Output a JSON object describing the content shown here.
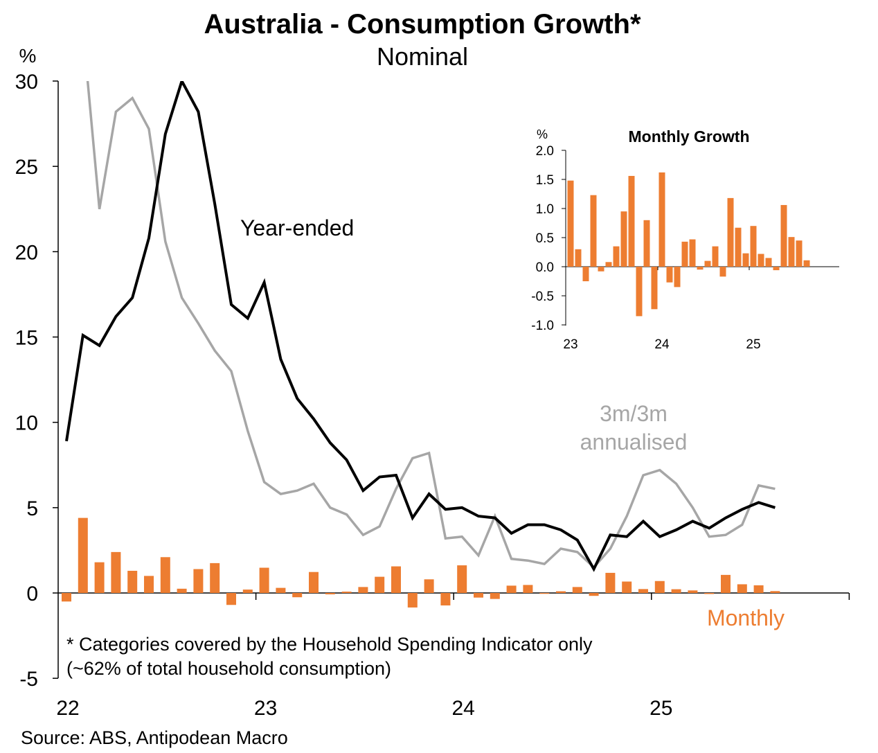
{
  "chart_data": {
    "type": "line",
    "title": "Australia - Consumption Growth*",
    "subtitle": "Nominal",
    "ylabel": "%",
    "ylim": [
      -5,
      30
    ],
    "yticks": [
      "30",
      "25",
      "20",
      "15",
      "10",
      "5",
      "0",
      "-5"
    ],
    "ytick_values": [
      30,
      25,
      20,
      15,
      10,
      5,
      0,
      -5
    ],
    "xtick_labels": [
      "22",
      "23",
      "24",
      "25"
    ],
    "x_start": "Jan 2022",
    "x_end": "Aug 2025",
    "series": [
      {
        "name": "Year-ended",
        "color": "#000000",
        "type": "line",
        "values": [
          8.9,
          15.1,
          14.5,
          16.2,
          17.3,
          20.8,
          26.9,
          30.0,
          28.2,
          22.8,
          16.9,
          16.1,
          18.2,
          13.7,
          11.4,
          10.2,
          8.8,
          7.8,
          6.0,
          6.8,
          6.9,
          4.4,
          5.8,
          4.9,
          5.0,
          4.5,
          4.4,
          3.5,
          4.0,
          4.0,
          3.7,
          3.1,
          1.4,
          3.4,
          3.3,
          4.2,
          3.3,
          3.7,
          4.2,
          3.8,
          4.4,
          4.9,
          5.3,
          5.0
        ]
      },
      {
        "name": "3m/3m annualised",
        "color": "#A6A6A6",
        "type": "line",
        "values": [
          null,
          33.0,
          22.5,
          28.2,
          29.0,
          27.2,
          20.6,
          17.3,
          15.8,
          14.2,
          13.0,
          9.5,
          6.5,
          5.8,
          6.0,
          6.4,
          5.0,
          4.6,
          3.4,
          3.9,
          6.1,
          7.9,
          8.2,
          3.2,
          3.3,
          2.2,
          4.5,
          2.0,
          1.9,
          1.7,
          2.6,
          2.4,
          1.5,
          2.6,
          4.5,
          6.9,
          7.2,
          6.4,
          5.0,
          3.3,
          3.4,
          4.0,
          6.3,
          6.1
        ]
      },
      {
        "name": "Monthly",
        "color": "#ED7D31",
        "type": "bar",
        "values": [
          -0.5,
          4.4,
          1.8,
          2.4,
          1.3,
          1.0,
          2.1,
          0.25,
          1.4,
          1.75,
          -0.7,
          0.2,
          1.48,
          0.3,
          -0.25,
          1.23,
          -0.08,
          0.08,
          0.35,
          0.95,
          1.56,
          -0.85,
          0.8,
          -0.73,
          1.62,
          -0.27,
          -0.35,
          0.43,
          0.47,
          -0.05,
          0.1,
          0.35,
          -0.17,
          1.18,
          0.67,
          0.23,
          0.7,
          0.22,
          0.15,
          -0.06,
          1.06,
          0.51,
          0.45,
          0.11
        ]
      }
    ],
    "labels": {
      "year_ended": "Year-ended",
      "threem_1": "3m/3m",
      "threem_2": "annualised",
      "monthly": "Monthly"
    },
    "inset": {
      "type": "bar",
      "title": "Monthly Growth",
      "ylabel": "%",
      "ylim": [
        -1.0,
        2.0
      ],
      "yticks": [
        "2.0",
        "1.5",
        "1.0",
        "0.5",
        "0.0",
        "-0.5",
        "-1.0"
      ],
      "ytick_values": [
        2.0,
        1.5,
        1.0,
        0.5,
        0.0,
        -0.5,
        -1.0
      ],
      "xtick_labels": [
        "23",
        "24",
        "25"
      ],
      "x_start": "Jan 2023",
      "values": [
        1.48,
        0.3,
        -0.25,
        1.23,
        -0.08,
        0.08,
        0.35,
        0.95,
        1.56,
        -0.85,
        0.8,
        -0.73,
        1.62,
        -0.27,
        -0.35,
        0.43,
        0.47,
        -0.05,
        0.1,
        0.35,
        -0.17,
        1.18,
        0.67,
        0.23,
        0.7,
        0.22,
        0.15,
        -0.06,
        1.06,
        0.51,
        0.45,
        0.11
      ]
    },
    "footnote_1": "* Categories covered by the Household Spending Indicator only",
    "footnote_2": "(~62% of total household consumption)",
    "source": "Source: ABS, Antipodean Macro"
  }
}
